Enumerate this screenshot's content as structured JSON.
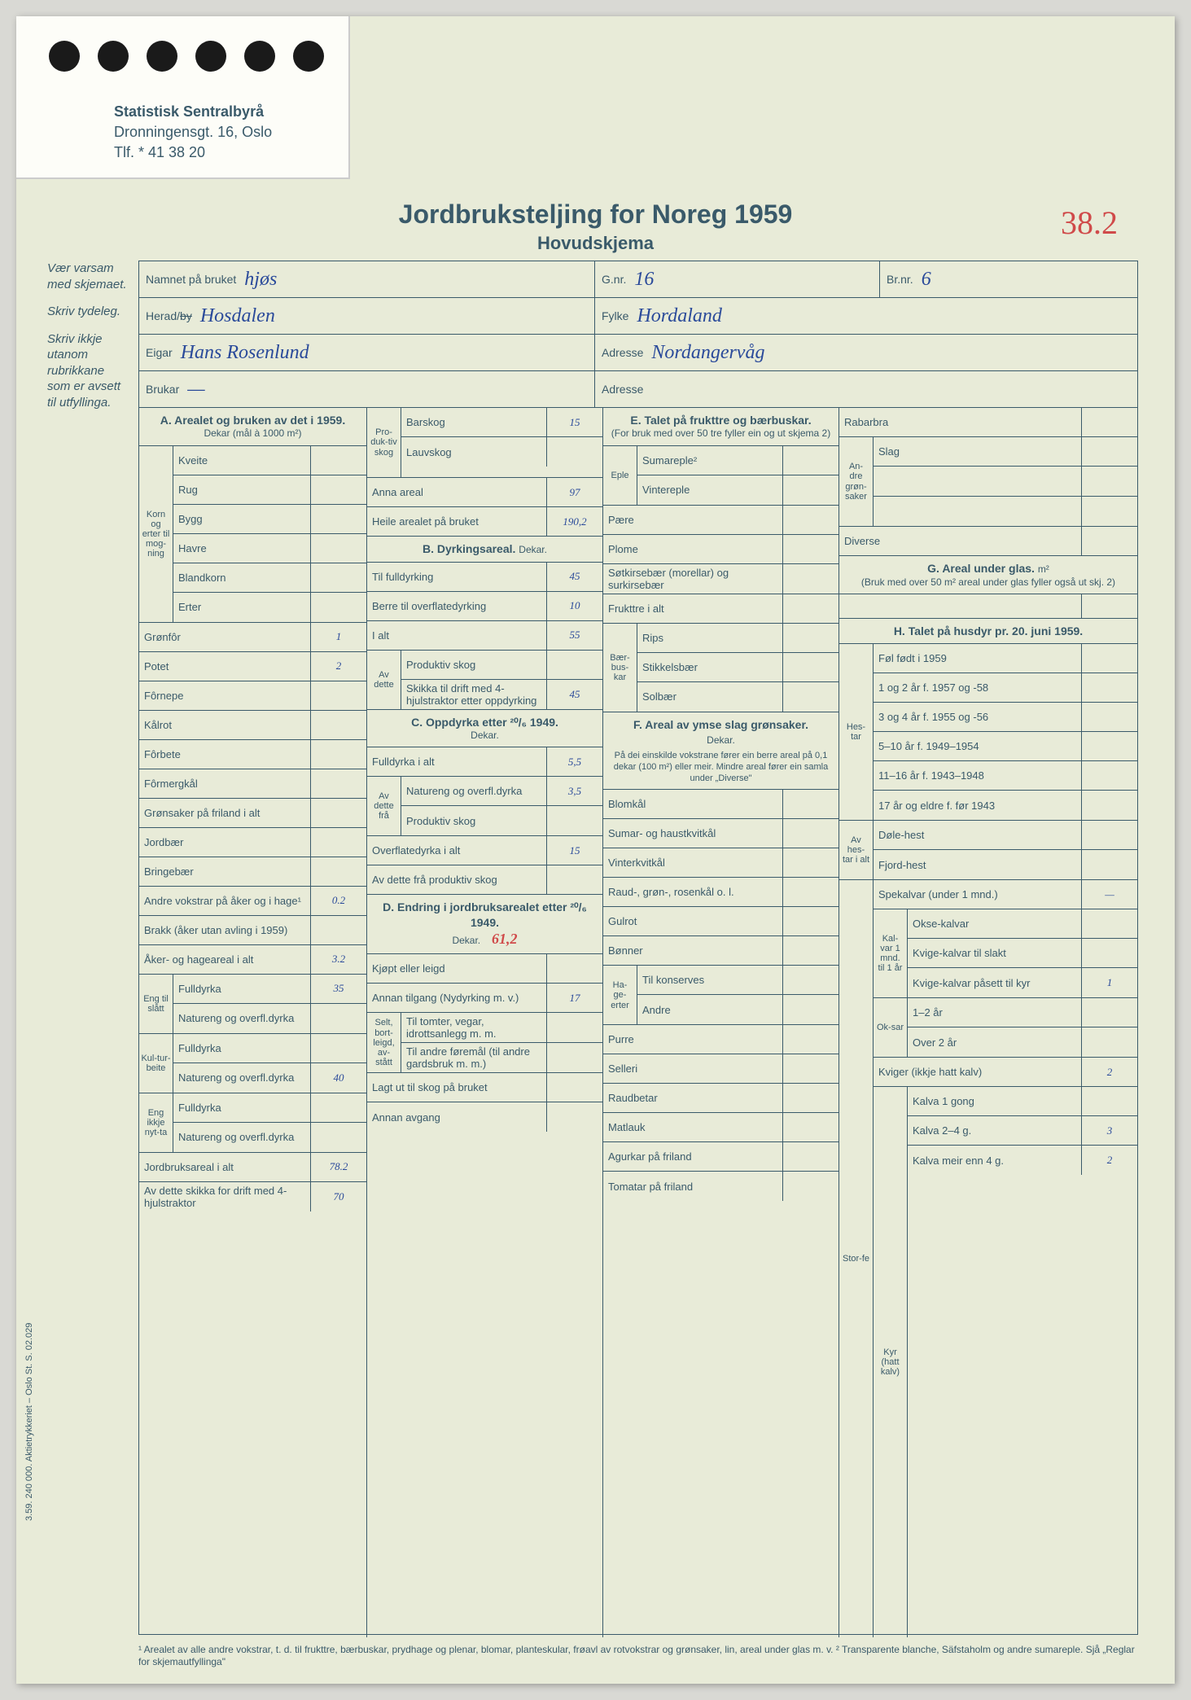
{
  "colors": {
    "paper": "#e8ebd8",
    "ink": "#3a5a6a",
    "hand_blue": "#2a4a9a",
    "hand_red": "#d04a4a",
    "notch": "#fdfdf8"
  },
  "org": {
    "name": "Statistisk Sentralbyrå",
    "addr": "Dronningensgt. 16, Oslo",
    "phone": "Tlf. * 41 38 20"
  },
  "title": {
    "main": "Jordbruksteljing for Noreg 1959",
    "sub": "Hovudskjema"
  },
  "page_mark": "38.2",
  "margin_notes": [
    "Vær varsam med skjemaet.",
    "Skriv tydeleg.",
    "Skriv ikkje utanom rubrikkane som er avsett til utfyllinga."
  ],
  "header": {
    "namnet_label": "Namnet på bruket",
    "namnet_value": "hjøs",
    "gnr_label": "G.nr.",
    "gnr_value": "16",
    "brnr_label": "Br.nr.",
    "brnr_value": "6",
    "herad_label": "Herad/",
    "herad_strike": "by",
    "herad_value": "Hosdalen",
    "fylke_label": "Fylke",
    "fylke_value": "Hordaland",
    "eigar_label": "Eigar",
    "eigar_value": "Hans Rosenlund",
    "adresse_label": "Adresse",
    "adresse_value": "Nordangervåg",
    "brukar_label": "Brukar",
    "brukar_value": "—",
    "adresse2_label": "Adresse",
    "adresse2_value": ""
  },
  "secA": {
    "head": "A. Arealet og bruken av det i 1959.",
    "sub": "Dekar (mål à 1000 m²)",
    "side_label": "Korn og erter til mog-ning",
    "rows": [
      {
        "label": "Kveite",
        "value": ""
      },
      {
        "label": "Rug",
        "value": ""
      },
      {
        "label": "Bygg",
        "value": ""
      },
      {
        "label": "Havre",
        "value": ""
      },
      {
        "label": "Blandkorn",
        "value": ""
      },
      {
        "label": "Erter",
        "value": ""
      }
    ],
    "rows2": [
      {
        "label": "Grønfôr",
        "value": "1"
      },
      {
        "label": "Potet",
        "value": "2"
      },
      {
        "label": "Fôrnepe",
        "value": ""
      },
      {
        "label": "Kålrot",
        "value": ""
      },
      {
        "label": "Fôrbete",
        "value": ""
      },
      {
        "label": "Fôrmergkål",
        "value": ""
      },
      {
        "label": "Grønsaker på friland i alt",
        "value": ""
      },
      {
        "label": "Jordbær",
        "value": ""
      },
      {
        "label": "Bringebær",
        "value": ""
      },
      {
        "label": "Andre vokstrar på åker og i hage¹",
        "value": "0.2"
      },
      {
        "label": "Brakk (åker utan avling i 1959)",
        "value": ""
      },
      {
        "label": "Åker- og hageareal i alt",
        "value": "3.2"
      }
    ],
    "eng_label": "Eng til slått",
    "eng_rows": [
      {
        "label": "Fulldyrka",
        "value": "35"
      },
      {
        "label": "Natureng og overfl.dyrka",
        "value": ""
      }
    ],
    "kultur_label": "Kul-tur-beite",
    "kultur_rows": [
      {
        "label": "Fulldyrka",
        "value": ""
      },
      {
        "label": "Natureng og overfl.dyrka",
        "value": "40"
      }
    ],
    "engikkje_label": "Eng ikkje nyt-ta",
    "engikkje_rows": [
      {
        "label": "Fulldyrka",
        "value": ""
      },
      {
        "label": "Natureng og overfl.dyrka",
        "value": ""
      }
    ],
    "total1": {
      "label": "Jordbruksareal i alt",
      "value": "78.2"
    },
    "total2": {
      "label": "Av dette skikka for drift med 4-hjulstraktor",
      "value": "70"
    }
  },
  "secB_top": {
    "side": "Pro-duk-tiv skog",
    "rows": [
      {
        "label": "Barskog",
        "value": "15"
      },
      {
        "label": "Lauvskog",
        "value": ""
      }
    ],
    "anna": {
      "label": "Anna areal",
      "value": "97"
    },
    "heile": {
      "label": "Heile arealet på bruket",
      "value": "190,2"
    }
  },
  "secB": {
    "head": "B. Dyrkingsareal.",
    "sub": "Dekar.",
    "rows": [
      {
        "label": "Til fulldyrking",
        "value": "45"
      },
      {
        "label": "Berre til overflatedyrking",
        "value": "10"
      },
      {
        "label": "I alt",
        "value": "55"
      }
    ],
    "avdette": "Av dette",
    "avdette_rows": [
      {
        "label": "Produktiv skog",
        "value": ""
      },
      {
        "label": "Skikka til drift med 4-hjulstraktor etter oppdyrking",
        "value": "45"
      }
    ]
  },
  "secC": {
    "head": "C. Oppdyrka etter ²⁰/₆ 1949.",
    "sub": "Dekar.",
    "rows": [
      {
        "label": "Fulldyrka i alt",
        "value": "5,5"
      }
    ],
    "avdette": "Av dette frå",
    "avdette_rows": [
      {
        "label": "Natureng og overfl.dyrka",
        "value": "3,5"
      },
      {
        "label": "Produktiv skog",
        "value": ""
      }
    ],
    "rows2": [
      {
        "label": "Overflatedyrka i alt",
        "value": "15"
      },
      {
        "label": "Av dette frå produktiv skog",
        "value": ""
      }
    ]
  },
  "secD": {
    "head": "D. Endring i jordbruksarealet etter ²⁰/₆ 1949.",
    "sub": "Dekar.",
    "head_hw": "61,2",
    "rows": [
      {
        "label": "Kjøpt eller leigd",
        "value": ""
      },
      {
        "label": "Annan tilgang (Nydyrking m. v.)",
        "value": "17"
      }
    ],
    "selt": "Selt, bort-leigd, av-stått",
    "selt_rows": [
      {
        "label": "Til tomter, vegar, idrottsanlegg m. m.",
        "value": ""
      },
      {
        "label": "Til andre føremål (til andre gardsbruk m. m.)",
        "value": ""
      }
    ],
    "rows2": [
      {
        "label": "Lagt ut til skog på bruket",
        "value": ""
      },
      {
        "label": "Annan avgang",
        "value": ""
      }
    ]
  },
  "secE": {
    "head": "E. Talet på frukttre og bærbuskar.",
    "sub": "(For bruk med over 50 tre fyller ein og ut skjema 2)",
    "eple": "Eple",
    "eple_rows": [
      {
        "label": "Sumareple²",
        "value": ""
      },
      {
        "label": "Vintereple",
        "value": ""
      }
    ],
    "rows": [
      {
        "label": "Pære",
        "value": ""
      },
      {
        "label": "Plome",
        "value": ""
      },
      {
        "label": "Søtkirsebær (morellar) og surkirsebær",
        "value": ""
      },
      {
        "label": "Frukttre i alt",
        "value": ""
      }
    ],
    "baer": "Bær-bus-kar",
    "baer_rows": [
      {
        "label": "Rips",
        "value": ""
      },
      {
        "label": "Stikkelsbær",
        "value": ""
      },
      {
        "label": "Solbær",
        "value": ""
      }
    ]
  },
  "secF": {
    "head": "F. Areal av ymse slag grønsaker.",
    "sub": "Dekar.",
    "note": "På dei einskilde vokstrane fører ein berre areal på 0,1 dekar (100 m²) eller meir. Mindre areal fører ein samla under „Diverse\"",
    "rows": [
      {
        "label": "Blomkål",
        "value": ""
      },
      {
        "label": "Sumar- og haustkvitkål",
        "value": ""
      },
      {
        "label": "Vinterkvitkål",
        "value": ""
      },
      {
        "label": "Raud-, grøn-, rosenkål o. l.",
        "value": ""
      },
      {
        "label": "Gulrot",
        "value": ""
      },
      {
        "label": "Bønner",
        "value": ""
      }
    ],
    "hage": "Ha-ge-erter",
    "hage_rows": [
      {
        "label": "Til konserves",
        "value": ""
      },
      {
        "label": "Andre",
        "value": ""
      }
    ],
    "rows2": [
      {
        "label": "Purre",
        "value": ""
      },
      {
        "label": "Selleri",
        "value": ""
      },
      {
        "label": "Raudbetar",
        "value": ""
      },
      {
        "label": "Matlauk",
        "value": ""
      },
      {
        "label": "Agurkar på friland",
        "value": ""
      },
      {
        "label": "Tomatar på friland",
        "value": ""
      }
    ]
  },
  "secG_top": {
    "rabarbra": "Rabarbra",
    "andre": "An-dre grøn-saker",
    "slag": "Slag",
    "diverse": "Diverse"
  },
  "secG": {
    "head": "G. Areal under glas.",
    "unit": "m²",
    "sub": "(Bruk med over 50 m² areal under glas fyller også ut skj. 2)"
  },
  "secH": {
    "head": "H. Talet på husdyr pr. 20. juni 1959.",
    "hestar": "Hes-tar",
    "hestar_rows": [
      {
        "label": "Føl født i 1959",
        "value": ""
      },
      {
        "label": "1 og 2 år f. 1957 og -58",
        "value": ""
      },
      {
        "label": "3 og 4 år f. 1955 og -56",
        "value": ""
      },
      {
        "label": "5–10 år f. 1949–1954",
        "value": ""
      },
      {
        "label": "11–16 år f. 1943–1948",
        "value": ""
      },
      {
        "label": "17 år og eldre f. før 1943",
        "value": ""
      }
    ],
    "avhest": "Av hes-tar i alt",
    "avhest_rows": [
      {
        "label": "Døle-hest",
        "value": ""
      },
      {
        "label": "Fjord-hest",
        "value": ""
      }
    ],
    "storfe": "Stor-fe",
    "spekalvar": {
      "label": "Spekalvar (under 1 mnd.)",
      "value": "—"
    },
    "kalvar": "Kal-var 1 mnd. til 1 år",
    "kalvar_rows": [
      {
        "label": "Okse-kalvar",
        "value": ""
      },
      {
        "label": "Kvige-kalvar til slakt",
        "value": ""
      },
      {
        "label": "Kvige-kalvar påsett til kyr",
        "value": "1"
      }
    ],
    "oksar": "Ok-sar",
    "oksar_rows": [
      {
        "label": "1–2 år",
        "value": ""
      },
      {
        "label": "Over 2 år",
        "value": ""
      }
    ],
    "kviger": {
      "label": "Kviger (ikkje hatt kalv)",
      "value": "2"
    },
    "kyr": "Kyr (hatt kalv)",
    "kyr_rows": [
      {
        "label": "Kalva 1 gong",
        "value": ""
      },
      {
        "label": "Kalva 2–4 g.",
        "value": "3"
      },
      {
        "label": "Kalva meir enn 4 g.",
        "value": "2"
      }
    ]
  },
  "footnote": "¹ Arealet av alle andre vokstrar, t. d. til frukttre, bærbuskar, prydhage og plenar, blomar, planteskular, frøavl av rotvokstrar og grønsaker, lin, areal under glas m. v.   ² Transparente blanche, Säfstaholm og andre sumareple. Sjå „Reglar for skjemautfyllinga\"",
  "side_print": "3.59. 240 000. Aktietrykkeriet – Oslo        St. S. 02.029"
}
